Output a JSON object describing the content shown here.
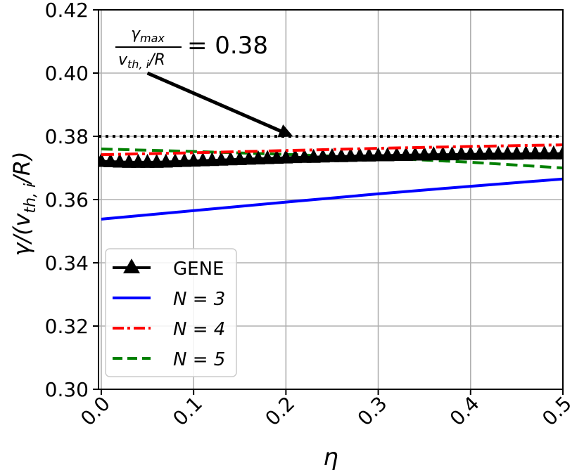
{
  "chart_data": {
    "type": "line",
    "title": "",
    "xlabel": "η",
    "ylabel": "γ/(v",
    "ylabel_sub": "th, i",
    "ylabel_tail": "/R)",
    "xlim": [
      -0.003,
      0.5
    ],
    "ylim": [
      0.3,
      0.42
    ],
    "xticks": [
      0.0,
      0.1,
      0.2,
      0.3,
      0.4,
      0.5
    ],
    "xtick_labels": [
      "0.0",
      "0.1",
      "0.2",
      "0.3",
      "0.4",
      "0.5"
    ],
    "yticks": [
      0.3,
      0.32,
      0.34,
      0.36,
      0.38,
      0.4,
      0.42
    ],
    "ytick_labels": [
      "0.30",
      "0.32",
      "0.34",
      "0.36",
      "0.38",
      "0.40",
      "0.42"
    ],
    "grid": true,
    "legend_position": "lower-left",
    "reference_line": {
      "y": 0.38,
      "style": "dotted",
      "color": "#000000"
    },
    "annotation": {
      "numerator": "γ",
      "numerator_sub": "max",
      "denominator": "v",
      "denominator_sub": "th, i",
      "denominator_tail": "/R",
      "equals_value": "= 0.38",
      "arrow_from": [
        0.05,
        0.4
      ],
      "arrow_to": [
        0.205,
        0.3803
      ]
    },
    "series": [
      {
        "name": "GENE",
        "legend_label": "GENE",
        "style": "solid-triangles",
        "color": "#000000",
        "x": [
          0.0,
          0.01,
          0.02,
          0.03,
          0.04,
          0.05,
          0.06,
          0.07,
          0.08,
          0.09,
          0.1,
          0.11,
          0.12,
          0.13,
          0.14,
          0.15,
          0.16,
          0.17,
          0.18,
          0.19,
          0.2,
          0.21,
          0.22,
          0.23,
          0.24,
          0.25,
          0.26,
          0.27,
          0.28,
          0.29,
          0.3,
          0.31,
          0.32,
          0.33,
          0.34,
          0.35,
          0.36,
          0.37,
          0.38,
          0.39,
          0.4,
          0.41,
          0.42,
          0.43,
          0.44,
          0.45,
          0.46,
          0.47,
          0.48,
          0.49,
          0.5
        ],
        "values": [
          0.3721,
          0.372,
          0.3719,
          0.3718,
          0.3718,
          0.3718,
          0.3718,
          0.3719,
          0.372,
          0.3721,
          0.3722,
          0.3723,
          0.3724,
          0.3725,
          0.3726,
          0.3727,
          0.3728,
          0.3729,
          0.373,
          0.3731,
          0.3732,
          0.3733,
          0.3734,
          0.3734,
          0.3735,
          0.3736,
          0.3736,
          0.3737,
          0.3738,
          0.3738,
          0.3739,
          0.3739,
          0.374,
          0.374,
          0.3741,
          0.3741,
          0.3742,
          0.3742,
          0.3742,
          0.3743,
          0.3743,
          0.3743,
          0.3744,
          0.3744,
          0.3744,
          0.3744,
          0.3745,
          0.3745,
          0.3745,
          0.3745,
          0.3745
        ]
      },
      {
        "name": "N=3",
        "legend_label": "N = 3",
        "style": "solid",
        "color": "#0000ff",
        "x": [
          0.0,
          0.1,
          0.2,
          0.3,
          0.4,
          0.5
        ],
        "values": [
          0.3538,
          0.3565,
          0.3592,
          0.3618,
          0.3642,
          0.3665
        ]
      },
      {
        "name": "N=4",
        "legend_label": "N = 4",
        "style": "dashdot",
        "color": "#ff0000",
        "x": [
          0.0,
          0.1,
          0.2,
          0.3,
          0.4,
          0.5
        ],
        "values": [
          0.3742,
          0.3748,
          0.3755,
          0.3762,
          0.3768,
          0.3773
        ]
      },
      {
        "name": "N=5",
        "legend_label": "N = 5",
        "style": "dashed",
        "color": "#008000",
        "x": [
          0.0,
          0.1,
          0.2,
          0.3,
          0.4,
          0.5
        ],
        "values": [
          0.376,
          0.3752,
          0.3743,
          0.3732,
          0.3718,
          0.37
        ]
      }
    ]
  }
}
